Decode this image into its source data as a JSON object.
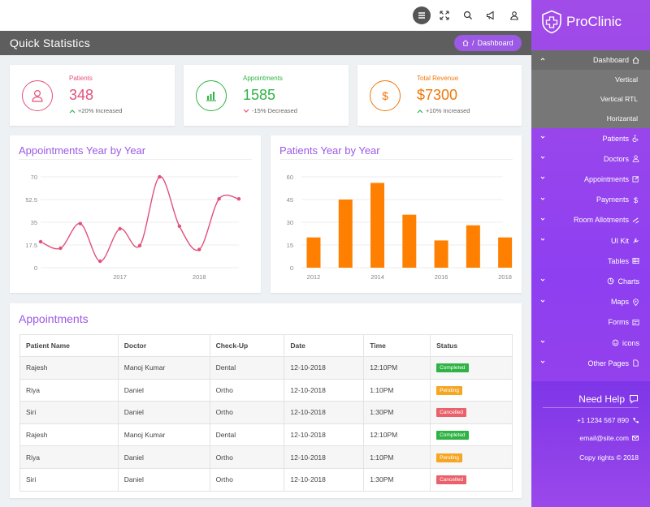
{
  "header": {
    "page_title": "Quick Statistics",
    "breadcrumb_sep": "/",
    "breadcrumb_current": "Dashboard"
  },
  "stats": [
    {
      "label": "Patients",
      "value": "348",
      "trend": "+20% Increased",
      "color": "#e5517b",
      "icon": "user-icon",
      "trend_dir": "up"
    },
    {
      "label": "Appointments",
      "value": "1585",
      "trend": "-15% Decreased",
      "color": "#2fb344",
      "icon": "bar-chart-icon",
      "trend_dir": "down"
    },
    {
      "label": "Total Revenue",
      "value": "$7300",
      "trend": "+10% Increased",
      "color": "#f0780a",
      "icon": "dollar-icon",
      "trend_dir": "up"
    }
  ],
  "line_chart": {
    "title": "Appointments Year by Year",
    "chart_data": {
      "type": "line",
      "x": [
        2016.0,
        2016.25,
        2016.5,
        2016.75,
        2017.0,
        2017.25,
        2017.5,
        2017.75,
        2018.0,
        2018.25,
        2018.5
      ],
      "values": [
        20,
        15,
        34,
        5,
        30,
        17,
        70,
        32,
        14,
        53,
        53
      ],
      "x_tick_labels": [
        "2017",
        "2018"
      ],
      "y_tick_labels": [
        "70",
        "52.5",
        "35",
        "17.5",
        "0"
      ],
      "ylim": [
        0,
        70
      ],
      "color": "#e0517b"
    }
  },
  "bar_chart": {
    "title": "Patients Year by Year",
    "chart_data": {
      "type": "bar",
      "categories": [
        "2012",
        "2013",
        "2014",
        "2015",
        "2016",
        "2017",
        "2018"
      ],
      "values": [
        20,
        45,
        56,
        35,
        18,
        28,
        20
      ],
      "x_tick_labels": [
        "2012",
        "2014",
        "2016",
        "2018"
      ],
      "y_tick_labels": [
        "60",
        "45",
        "30",
        "15",
        "0"
      ],
      "ylim": [
        0,
        60
      ],
      "color": "#ff8000"
    }
  },
  "appointments": {
    "title": "Appointments",
    "columns": [
      "Patient Name",
      "Doctor",
      "Check-Up",
      "Date",
      "Time",
      "Status"
    ],
    "rows": [
      {
        "patient": "Rajesh",
        "doctor": "Manoj Kumar",
        "checkup": "Dental",
        "date": "12-10-2018",
        "time": "12:10PM",
        "status": "Completed",
        "status_color": "#2fb344"
      },
      {
        "patient": "Riya",
        "doctor": "Daniel",
        "checkup": "Ortho",
        "date": "12-10-2018",
        "time": "1:10PM",
        "status": "Pending",
        "status_color": "#f5a623"
      },
      {
        "patient": "Siri",
        "doctor": "Daniel",
        "checkup": "Ortho",
        "date": "12-10-2018",
        "time": "1:30PM",
        "status": "Cancelled",
        "status_color": "#e9616b"
      },
      {
        "patient": "Rajesh",
        "doctor": "Manoj Kumar",
        "checkup": "Dental",
        "date": "12-10-2018",
        "time": "12:10PM",
        "status": "Completed",
        "status_color": "#2fb344"
      },
      {
        "patient": "Riya",
        "doctor": "Daniel",
        "checkup": "Ortho",
        "date": "12-10-2018",
        "time": "1:10PM",
        "status": "Pending",
        "status_color": "#f5a623"
      },
      {
        "patient": "Siri",
        "doctor": "Daniel",
        "checkup": "Ortho",
        "date": "12-10-2018",
        "time": "1:30PM",
        "status": "Cancelled",
        "status_color": "#e9616b"
      }
    ]
  },
  "sidebar": {
    "brand": "ProClinic",
    "dashboard": "Dashboard",
    "dashboard_sub": [
      "Vertical",
      "Vertical RTL",
      "Horizantal"
    ],
    "items": [
      {
        "label": "Patients",
        "icon": "wheelchair-icon"
      },
      {
        "label": "Doctors",
        "icon": "user-icon"
      },
      {
        "label": "Appointments",
        "icon": "edit-icon"
      },
      {
        "label": "Payments",
        "icon": "dollar-icon"
      },
      {
        "label": "Room Allotments",
        "icon": "bed-icon"
      },
      {
        "label": "UI Kit",
        "icon": "wrench-icon"
      },
      {
        "label": "Tables",
        "icon": "table-icon"
      },
      {
        "label": "Charts",
        "icon": "pie-chart-icon"
      },
      {
        "label": "Maps",
        "icon": "map-pin-icon"
      },
      {
        "label": "Forms",
        "icon": "form-icon"
      },
      {
        "label": "icons",
        "icon": "smile-icon"
      },
      {
        "label": "Other Pages",
        "icon": "file-icon"
      }
    ],
    "help_title": "Need Help",
    "phone": "+1 1234 567 890",
    "email": "email@site.com",
    "copyright": "Copy rights © 2018"
  },
  "colors": {
    "accent": "#9b59e6",
    "topbar_active": "#555555"
  }
}
